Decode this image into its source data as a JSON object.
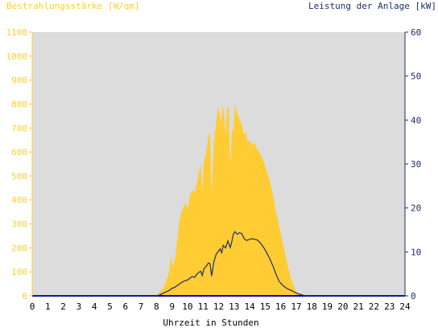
{
  "header": {
    "left_title": "Bestrahlungsstärke [W/qm]",
    "right_title": "Leistung der Anlage [kW]"
  },
  "colors": {
    "background": "#ffffff",
    "plot_area": "#dcdcdc",
    "irradiance_fill": "#ffcc33",
    "irradiance_axis": "#ffcc33",
    "power_line": "#1a2f6b",
    "power_axis": "#1a2f6b",
    "zero_line": "#0000cc",
    "x_axis_text": "#000000"
  },
  "chart_data": {
    "type": "area",
    "title": "",
    "xlabel": "Uhrzeit in Stunden",
    "ylabel_left": "Bestrahlungsstärke [W/qm]",
    "ylabel_right": "Leistung der Anlage [kW]",
    "xlim": [
      0,
      24
    ],
    "ylim_left": [
      0,
      1100
    ],
    "ylim_right": [
      0,
      60
    ],
    "x_ticks": [
      "0",
      "1",
      "2",
      "3",
      "4",
      "5",
      "6",
      "7",
      "8",
      "9",
      "10",
      "11",
      "12",
      "13",
      "14",
      "15",
      "16",
      "17",
      "18",
      "19",
      "20",
      "21",
      "22",
      "23",
      "24"
    ],
    "y_ticks_left": [
      "0",
      "100",
      "200",
      "300",
      "400",
      "500",
      "600",
      "700",
      "800",
      "900",
      "1000",
      "1100"
    ],
    "y_ticks_right": [
      "0",
      "10",
      "20",
      "30",
      "40",
      "50",
      "60"
    ],
    "grid": false,
    "series": [
      {
        "name": "Bestrahlungsstärke",
        "axis": "left",
        "style": "area",
        "points": [
          [
            0,
            0
          ],
          [
            7.9,
            0
          ],
          [
            8.0,
            5
          ],
          [
            8.2,
            15
          ],
          [
            8.4,
            30
          ],
          [
            8.6,
            55
          ],
          [
            8.8,
            100
          ],
          [
            8.95,
            170
          ],
          [
            9.05,
            120
          ],
          [
            9.2,
            160
          ],
          [
            9.35,
            240
          ],
          [
            9.45,
            300
          ],
          [
            9.6,
            350
          ],
          [
            9.75,
            370
          ],
          [
            9.9,
            390
          ],
          [
            10.0,
            360
          ],
          [
            10.15,
            420
          ],
          [
            10.3,
            440
          ],
          [
            10.45,
            430
          ],
          [
            10.6,
            470
          ],
          [
            10.75,
            520
          ],
          [
            10.85,
            545
          ],
          [
            10.95,
            430
          ],
          [
            11.05,
            560
          ],
          [
            11.2,
            600
          ],
          [
            11.35,
            670
          ],
          [
            11.45,
            680
          ],
          [
            11.55,
            420
          ],
          [
            11.7,
            640
          ],
          [
            11.85,
            730
          ],
          [
            12.0,
            790
          ],
          [
            12.15,
            720
          ],
          [
            12.25,
            800
          ],
          [
            12.35,
            760
          ],
          [
            12.45,
            670
          ],
          [
            12.55,
            790
          ],
          [
            12.65,
            780
          ],
          [
            12.75,
            540
          ],
          [
            12.85,
            680
          ],
          [
            12.95,
            700
          ],
          [
            13.05,
            800
          ],
          [
            13.2,
            760
          ],
          [
            13.35,
            740
          ],
          [
            13.5,
            710
          ],
          [
            13.65,
            670
          ],
          [
            13.75,
            690
          ],
          [
            13.85,
            640
          ],
          [
            14.0,
            650
          ],
          [
            14.15,
            630
          ],
          [
            14.3,
            640
          ],
          [
            14.5,
            610
          ],
          [
            14.7,
            590
          ],
          [
            14.9,
            560
          ],
          [
            15.1,
            520
          ],
          [
            15.3,
            480
          ],
          [
            15.5,
            420
          ],
          [
            15.7,
            350
          ],
          [
            15.9,
            290
          ],
          [
            16.1,
            230
          ],
          [
            16.3,
            170
          ],
          [
            16.5,
            110
          ],
          [
            16.7,
            65
          ],
          [
            16.9,
            30
          ],
          [
            17.1,
            12
          ],
          [
            17.3,
            4
          ],
          [
            17.5,
            0
          ],
          [
            24,
            0
          ]
        ]
      },
      {
        "name": "Leistung der Anlage",
        "axis": "right",
        "style": "line",
        "points": [
          [
            0,
            0
          ],
          [
            8.0,
            0
          ],
          [
            8.2,
            0.2
          ],
          [
            8.5,
            0.7
          ],
          [
            8.8,
            1.2
          ],
          [
            9.0,
            1.7
          ],
          [
            9.2,
            2.0
          ],
          [
            9.4,
            2.5
          ],
          [
            9.6,
            3.0
          ],
          [
            9.8,
            3.4
          ],
          [
            10.0,
            3.6
          ],
          [
            10.15,
            4.0
          ],
          [
            10.3,
            4.4
          ],
          [
            10.45,
            4.2
          ],
          [
            10.6,
            4.9
          ],
          [
            10.75,
            5.4
          ],
          [
            10.85,
            5.6
          ],
          [
            10.95,
            4.6
          ],
          [
            11.05,
            6.1
          ],
          [
            11.2,
            6.7
          ],
          [
            11.35,
            7.5
          ],
          [
            11.45,
            7.3
          ],
          [
            11.55,
            4.5
          ],
          [
            11.7,
            7.8
          ],
          [
            11.85,
            9.5
          ],
          [
            12.0,
            10.2
          ],
          [
            12.1,
            10.7
          ],
          [
            12.2,
            9.8
          ],
          [
            12.3,
            11.5
          ],
          [
            12.45,
            10.9
          ],
          [
            12.6,
            12.5
          ],
          [
            12.75,
            11.0
          ],
          [
            12.85,
            12.3
          ],
          [
            12.95,
            14.0
          ],
          [
            13.05,
            14.6
          ],
          [
            13.2,
            14.0
          ],
          [
            13.35,
            14.4
          ],
          [
            13.5,
            14.1
          ],
          [
            13.65,
            13.0
          ],
          [
            13.8,
            12.6
          ],
          [
            13.95,
            12.8
          ],
          [
            14.1,
            13.0
          ],
          [
            14.3,
            12.9
          ],
          [
            14.5,
            12.7
          ],
          [
            14.7,
            12.0
          ],
          [
            14.9,
            11.0
          ],
          [
            15.1,
            9.8
          ],
          [
            15.3,
            8.4
          ],
          [
            15.5,
            6.8
          ],
          [
            15.7,
            4.9
          ],
          [
            15.9,
            3.3
          ],
          [
            16.1,
            2.5
          ],
          [
            16.3,
            1.9
          ],
          [
            16.5,
            1.5
          ],
          [
            16.7,
            1.2
          ],
          [
            16.9,
            0.8
          ],
          [
            17.1,
            0.5
          ],
          [
            17.3,
            0.3
          ],
          [
            17.5,
            0.1
          ],
          [
            17.7,
            0
          ],
          [
            24,
            0
          ]
        ]
      }
    ]
  }
}
